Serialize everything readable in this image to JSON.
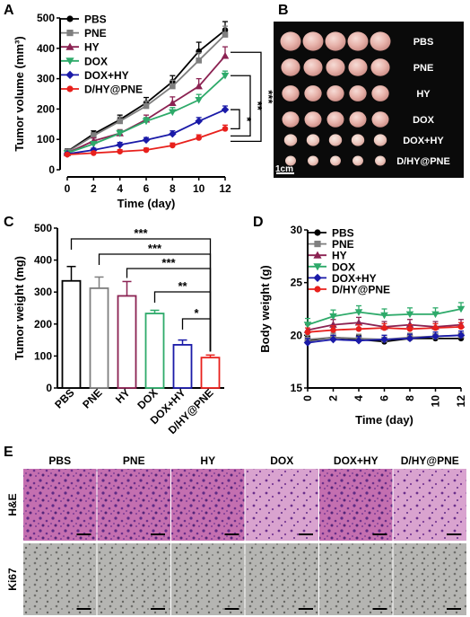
{
  "panels": {
    "A": "A",
    "B": "B",
    "C": "C",
    "D": "D",
    "E": "E"
  },
  "colors": {
    "PBS": "#000000",
    "PNE": "#7f7f7f",
    "HY": "#8b2252",
    "DOX": "#2eaa6a",
    "DOX+HY": "#1a1aa8",
    "D/HY@PNE": "#e8201c"
  },
  "chart_data": [
    {
      "id": "A",
      "type": "line",
      "xlabel": "Time (day)",
      "ylabel": "Tumor volume (mm³)",
      "x": [
        0,
        2,
        4,
        6,
        8,
        10,
        12
      ],
      "xlim": [
        0,
        12
      ],
      "ylim": [
        0,
        500
      ],
      "xticks": [
        "0",
        "2",
        "4",
        "6",
        "8",
        "10",
        "12"
      ],
      "yticks": [
        "0",
        "100",
        "200",
        "300",
        "400",
        "500"
      ],
      "legend_position": "top-left",
      "series": [
        {
          "name": "PBS",
          "marker": "circle",
          "values": [
            60,
            118,
            165,
            220,
            290,
            390,
            460
          ],
          "errors": [
            8,
            10,
            15,
            18,
            20,
            30,
            28
          ]
        },
        {
          "name": "PNE",
          "marker": "square",
          "values": [
            58,
            112,
            160,
            210,
            275,
            360,
            445
          ],
          "errors": [
            8,
            10,
            14,
            16,
            20,
            25,
            28
          ]
        },
        {
          "name": "HY",
          "marker": "triangle-up",
          "values": [
            55,
            95,
            120,
            165,
            220,
            275,
            375
          ],
          "errors": [
            8,
            10,
            12,
            15,
            20,
            25,
            30
          ]
        },
        {
          "name": "DOX",
          "marker": "triangle-down",
          "values": [
            55,
            85,
            120,
            160,
            190,
            230,
            310
          ],
          "errors": [
            6,
            8,
            10,
            12,
            15,
            18,
            15
          ]
        },
        {
          "name": "DOX+HY",
          "marker": "diamond",
          "values": [
            52,
            65,
            82,
            98,
            118,
            160,
            198
          ],
          "errors": [
            5,
            6,
            8,
            8,
            10,
            12,
            12
          ]
        },
        {
          "name": "D/HY@PNE",
          "marker": "circle",
          "values": [
            50,
            55,
            60,
            65,
            80,
            105,
            135
          ],
          "errors": [
            5,
            5,
            6,
            6,
            8,
            10,
            12
          ]
        }
      ],
      "significance": [
        "*",
        "**",
        "***"
      ]
    },
    {
      "id": "C",
      "type": "bar",
      "ylabel": "Tumor weight (mg)",
      "categories": [
        "PBS",
        "PNE",
        "HY",
        "DOX",
        "DOX+HY",
        "D/HY@PNE"
      ],
      "values": [
        335,
        312,
        288,
        233,
        135,
        95
      ],
      "errors": [
        45,
        35,
        45,
        10,
        15,
        8
      ],
      "ylim": [
        0,
        500
      ],
      "yticks": [
        "0",
        "100",
        "200",
        "300",
        "400",
        "500"
      ],
      "significance": [
        "***",
        "***",
        "***",
        "**",
        "*"
      ]
    },
    {
      "id": "D",
      "type": "line",
      "xlabel": "Time (day)",
      "ylabel": "Body weight (g)",
      "x": [
        0,
        2,
        4,
        6,
        8,
        10,
        12
      ],
      "xlim": [
        0,
        12
      ],
      "ylim": [
        15,
        30
      ],
      "xticks": [
        "0",
        "2",
        "4",
        "6",
        "8",
        "10",
        "12"
      ],
      "yticks": [
        "15",
        "20",
        "25",
        "30"
      ],
      "legend_position": "top-left",
      "series": [
        {
          "name": "PBS",
          "marker": "circle",
          "values": [
            19.5,
            19.8,
            19.6,
            19.4,
            19.7,
            19.7,
            19.7
          ],
          "errors": [
            0.4,
            0.4,
            0.4,
            0.4,
            0.4,
            0.4,
            0.4
          ]
        },
        {
          "name": "PNE",
          "marker": "square",
          "values": [
            19.6,
            19.8,
            19.7,
            19.6,
            19.8,
            19.9,
            20.0
          ],
          "errors": [
            0.4,
            0.4,
            0.4,
            0.4,
            0.4,
            0.4,
            0.4
          ]
        },
        {
          "name": "HY",
          "marker": "triangle-up",
          "values": [
            20.5,
            21.0,
            21.2,
            20.8,
            21.0,
            20.8,
            21.0
          ],
          "errors": [
            0.5,
            0.5,
            0.5,
            0.5,
            0.5,
            0.5,
            0.5
          ]
        },
        {
          "name": "DOX",
          "marker": "triangle-down",
          "values": [
            21.0,
            21.8,
            22.2,
            21.9,
            22.0,
            22.0,
            22.5
          ],
          "errors": [
            0.6,
            0.6,
            0.6,
            0.6,
            0.6,
            0.6,
            0.6
          ]
        },
        {
          "name": "DOX+HY",
          "marker": "diamond",
          "values": [
            19.3,
            19.6,
            19.5,
            19.6,
            19.7,
            19.9,
            20.0
          ],
          "errors": [
            0.4,
            0.4,
            0.4,
            0.4,
            0.4,
            0.4,
            0.4
          ]
        },
        {
          "name": "D/HY@PNE",
          "marker": "circle",
          "values": [
            20.3,
            20.5,
            20.6,
            20.7,
            20.6,
            20.7,
            20.8
          ],
          "errors": [
            0.4,
            0.4,
            0.4,
            0.4,
            0.4,
            0.4,
            0.4
          ]
        }
      ]
    }
  ],
  "photo": {
    "labels": [
      "PBS",
      "PNE",
      "HY",
      "DOX",
      "DOX+HY",
      "D/HY@PNE"
    ],
    "scale_label": "1cm"
  },
  "histology": {
    "columns": [
      "PBS",
      "PNE",
      "HY",
      "DOX",
      "DOX+HY",
      "D/HY@PNE"
    ],
    "rows": [
      "H&E",
      "Ki67"
    ]
  }
}
